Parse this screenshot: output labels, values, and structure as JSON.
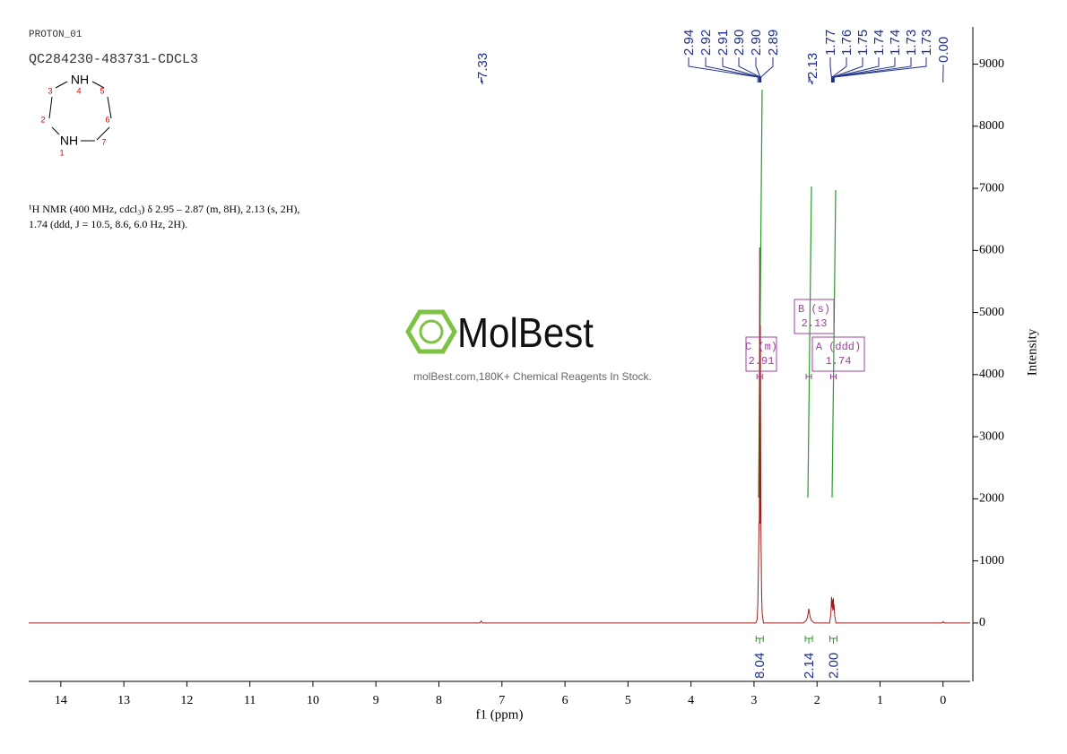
{
  "header": {
    "experiment": "PROTON_01",
    "sample": "QC284230-483731-CDCL3"
  },
  "structure": {
    "atoms": [
      "NH",
      "NH"
    ],
    "numbers": [
      "1",
      "2",
      "3",
      "4",
      "5",
      "6",
      "7"
    ]
  },
  "description": [
    "¹H NMR (400 MHz, cdcl₃) δ 2.95 – 2.87 (m, 8H), 2.13 (s, 2H),",
    "1.74 (ddd, J = 10.5, 8.6, 6.0 Hz, 2H)."
  ],
  "watermark": {
    "logo": "MolBest",
    "tagline": "molBest.com,180K+ Chemical Reagents In Stock."
  },
  "chart_data": {
    "type": "line",
    "xlabel": "f1 (ppm)",
    "ylabel": "Intensity",
    "xlim": [
      14.51,
      -0.43
    ],
    "ylim": [
      -940,
      9600
    ],
    "xticks": [
      14,
      13,
      12,
      11,
      10,
      9,
      8,
      7,
      6,
      5,
      4,
      3,
      2,
      1,
      0
    ],
    "yticks": [
      0,
      1000,
      2000,
      3000,
      4000,
      5000,
      6000,
      7000,
      8000,
      9000
    ],
    "color": "#a01c1c",
    "x": [
      14.51,
      7.35,
      7.33,
      7.31,
      2.97,
      2.95,
      2.94,
      2.93,
      2.92,
      2.915,
      2.91,
      2.905,
      2.9,
      2.89,
      2.88,
      2.87,
      2.85,
      2.22,
      2.17,
      2.15,
      2.13,
      2.11,
      2.09,
      2.04,
      1.8,
      1.78,
      1.77,
      1.76,
      1.755,
      1.75,
      1.74,
      1.735,
      1.73,
      1.72,
      1.7,
      0.02,
      0.0,
      -0.02,
      -0.43
    ],
    "values": [
      0,
      0,
      30,
      0,
      0,
      60,
      300,
      900,
      1600,
      1650,
      6050,
      1600,
      4800,
      1500,
      500,
      150,
      0,
      0,
      40,
      100,
      230,
      100,
      40,
      0,
      0,
      150,
      420,
      250,
      380,
      200,
      400,
      220,
      300,
      120,
      0,
      0,
      20,
      0,
      0
    ],
    "peak_labels": [
      7.33,
      2.94,
      2.92,
      2.91,
      {
        "value": 2.9,
        "label": "2.90"
      },
      {
        "value": 2.9,
        "label": "2.90"
      },
      2.89,
      2.13,
      1.77,
      1.76,
      1.75,
      1.74,
      1.74,
      1.73,
      1.73,
      {
        "value": 0,
        "label": "0.00"
      }
    ],
    "multiplets": [
      {
        "label": "C (m)",
        "shift": 2.91
      },
      {
        "label": "B (s)",
        "shift": 2.13
      },
      {
        "label": "A (ddd)",
        "shift": 1.74
      }
    ],
    "integrals": [
      {
        "shift": 2.91,
        "label": "8.04"
      },
      {
        "shift": 2.13,
        "label": "2.14"
      },
      {
        "shift": 1.74,
        "label": "2.00"
      }
    ]
  }
}
